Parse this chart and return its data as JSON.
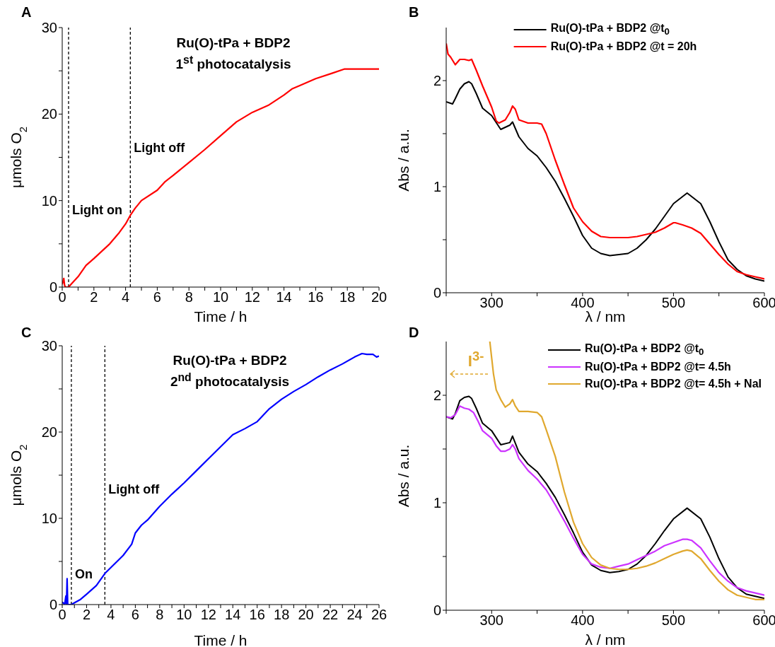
{
  "chart_data": [
    {
      "type": "line",
      "title": "A",
      "xlabel": "Time / h",
      "ylabel": "μmols O$_{2}$",
      "xlim": [
        0,
        20
      ],
      "ylim": [
        0,
        30
      ],
      "xticks": [
        0,
        {
          "value": 1,
          "label": null
        },
        2,
        {
          "value": 3,
          "label": null
        },
        4,
        {
          "value": 5,
          "label": null
        },
        6,
        {
          "value": 7,
          "label": null
        },
        8,
        {
          "value": 9,
          "label": null
        },
        10,
        {
          "value": 11,
          "label": null
        },
        12,
        {
          "value": 13,
          "label": null
        },
        14,
        {
          "value": 15,
          "label": null
        },
        16,
        {
          "value": 17,
          "label": null
        },
        18,
        {
          "value": 19,
          "label": null
        },
        20
      ],
      "yticks": [
        0,
        {
          "value": 5,
          "label": null
        },
        10,
        {
          "value": 15,
          "label": null
        },
        20,
        {
          "value": 25,
          "label": null
        },
        30
      ],
      "annotations": [
        "Ru(O)-tPa + BDP2",
        "1$^{st}$ photocatalysis"
      ],
      "ref_lines": [
        {
          "axis": "x",
          "value": 0.4,
          "label": "Light on",
          "line_style": "dashed",
          "color": "#000000"
        },
        {
          "axis": "x",
          "value": 4.3,
          "label": "Light off",
          "line_style": "dashed",
          "color": "#000000"
        }
      ],
      "series": [
        {
          "color": "#ff0000",
          "x": [
            0,
            0.1,
            0.15,
            0.2,
            0.4,
            0.6,
            1.0,
            1.5,
            2,
            3,
            3.6,
            4,
            4.3,
            4.6,
            5,
            6,
            6.5,
            7,
            8,
            9,
            10,
            11,
            12,
            13,
            14,
            14.5,
            15,
            16,
            17,
            17.8,
            18,
            20
          ],
          "values": [
            0.3,
            1.0,
            0.2,
            0,
            0,
            0.4,
            1.2,
            2.5,
            3.3,
            5.0,
            6.3,
            7.3,
            8.3,
            9.1,
            10.0,
            11.2,
            12.2,
            12.9,
            14.4,
            15.9,
            17.5,
            19.1,
            20.2,
            21.0,
            22.2,
            22.9,
            23.3,
            24.1,
            24.7,
            25.2,
            25.2,
            25.2
          ]
        }
      ]
    },
    {
      "type": "line",
      "title": "B",
      "xlabel": "λ / nm",
      "ylabel": "Abs / a.u.",
      "xlim": [
        250,
        600
      ],
      "ylim": [
        0,
        2.5
      ],
      "xticks": [
        {
          "value": 250,
          "label": null
        },
        300,
        {
          "value": 350,
          "label": null
        },
        400,
        {
          "value": 450,
          "label": null
        },
        500,
        {
          "value": 550,
          "label": null
        },
        600
      ],
      "yticks": [
        0,
        {
          "value": 0.5,
          "label": null
        },
        1,
        {
          "value": 1.5,
          "label": null
        },
        2
      ],
      "legend": "top",
      "series": [
        {
          "name": "Ru(O)-tPa + BDP2 @t$_{0}$",
          "color": "#000000",
          "x": [
            250,
            257,
            260,
            265,
            270,
            275,
            278,
            283,
            290,
            300,
            310,
            320,
            323,
            330,
            340,
            350,
            360,
            370,
            380,
            390,
            400,
            410,
            420,
            430,
            440,
            450,
            460,
            470,
            480,
            490,
            500,
            515,
            530,
            540,
            550,
            560,
            570,
            580,
            590,
            600
          ],
          "values": [
            1.8,
            1.78,
            1.83,
            1.92,
            1.97,
            1.99,
            1.97,
            1.88,
            1.74,
            1.67,
            1.54,
            1.58,
            1.61,
            1.47,
            1.36,
            1.29,
            1.18,
            1.05,
            0.89,
            0.72,
            0.54,
            0.42,
            0.37,
            0.35,
            0.36,
            0.37,
            0.42,
            0.5,
            0.6,
            0.72,
            0.84,
            0.94,
            0.84,
            0.67,
            0.48,
            0.31,
            0.22,
            0.16,
            0.13,
            0.11
          ]
        },
        {
          "name": "Ru(O)-tPa + BDP2 @t = 20h",
          "color": "#ff0000",
          "x": [
            250,
            252,
            255,
            260,
            265,
            270,
            275,
            278,
            283,
            290,
            295,
            300,
            305,
            308,
            315,
            320,
            323,
            326,
            330,
            340,
            350,
            355,
            360,
            370,
            380,
            390,
            400,
            410,
            420,
            430,
            440,
            450,
            460,
            470,
            480,
            490,
            500,
            502,
            510,
            520,
            530,
            540,
            550,
            560,
            570,
            580,
            590,
            600
          ],
          "values": [
            2.35,
            2.25,
            2.22,
            2.15,
            2.2,
            2.2,
            2.19,
            2.2,
            2.1,
            1.95,
            1.85,
            1.75,
            1.62,
            1.6,
            1.63,
            1.7,
            1.76,
            1.73,
            1.63,
            1.6,
            1.6,
            1.59,
            1.5,
            1.25,
            1.02,
            0.8,
            0.67,
            0.58,
            0.53,
            0.52,
            0.52,
            0.52,
            0.53,
            0.55,
            0.57,
            0.61,
            0.66,
            0.66,
            0.64,
            0.61,
            0.56,
            0.46,
            0.36,
            0.27,
            0.2,
            0.17,
            0.15,
            0.13
          ]
        }
      ]
    },
    {
      "type": "line",
      "title": "C",
      "xlabel": "Time / h",
      "ylabel": "μmols O$_{2}$",
      "xlim": [
        0,
        26
      ],
      "ylim": [
        0,
        30
      ],
      "xticks": [
        0,
        {
          "value": 1,
          "label": null
        },
        2,
        {
          "value": 3,
          "label": null
        },
        4,
        {
          "value": 5,
          "label": null
        },
        6,
        {
          "value": 7,
          "label": null
        },
        8,
        {
          "value": 9,
          "label": null
        },
        10,
        {
          "value": 11,
          "label": null
        },
        12,
        {
          "value": 13,
          "label": null
        },
        14,
        {
          "value": 15,
          "label": null
        },
        16,
        {
          "value": 17,
          "label": null
        },
        18,
        {
          "value": 19,
          "label": null
        },
        20,
        {
          "value": 21,
          "label": null
        },
        22,
        {
          "value": 23,
          "label": null
        },
        24,
        {
          "value": 25,
          "label": null
        },
        26
      ],
      "yticks": [
        0,
        {
          "value": 5,
          "label": null
        },
        10,
        {
          "value": 15,
          "label": null
        },
        20,
        {
          "value": 25,
          "label": null
        },
        30
      ],
      "annotations": [
        "Ru(O)-tPa + BDP2",
        "2$^{nd}$ photocatalysis"
      ],
      "ref_lines": [
        {
          "axis": "x",
          "value": 0.75,
          "label": "On",
          "line_style": "dashed",
          "color": "#000000"
        },
        {
          "axis": "x",
          "value": 3.5,
          "label": "Light off",
          "line_style": "dashed",
          "color": "#000000"
        }
      ],
      "series": [
        {
          "color": "#0000ff",
          "x": [
            0,
            0.2,
            0.3,
            0.35,
            0.4,
            0.45,
            0.75,
            1,
            1.5,
            2,
            2.8,
            3.5,
            4,
            5,
            5.7,
            6,
            6.5,
            7,
            8,
            9,
            10,
            11,
            12,
            13,
            14,
            15,
            16,
            17,
            18,
            19,
            20,
            21,
            22,
            23,
            24,
            24.6,
            25,
            25.5,
            25.8,
            26
          ],
          "values": [
            0.3,
            0,
            1.0,
            0,
            3.0,
            0,
            0,
            0.2,
            0.6,
            1.2,
            2.2,
            3.6,
            4.3,
            5.7,
            7.0,
            8.3,
            9.2,
            9.8,
            11.4,
            12.8,
            14.1,
            15.5,
            16.9,
            18.3,
            19.7,
            20.4,
            21.2,
            22.7,
            23.8,
            24.7,
            25.5,
            26.4,
            27.2,
            27.9,
            28.7,
            29.1,
            29.0,
            29.0,
            28.7,
            28.8
          ]
        }
      ]
    },
    {
      "type": "line",
      "title": "D",
      "xlabel": "λ / nm",
      "ylabel": "Abs / a.u.",
      "xlim": [
        250,
        600
      ],
      "ylim": [
        0,
        2.5
      ],
      "xticks": [
        {
          "value": 250,
          "label": null
        },
        300,
        {
          "value": 350,
          "label": null
        },
        400,
        {
          "value": 450,
          "label": null
        },
        500,
        {
          "value": 550,
          "label": null
        },
        600
      ],
      "yticks": [
        0,
        {
          "value": 0.5,
          "label": null
        },
        1,
        {
          "value": 1.5,
          "label": null
        },
        2
      ],
      "legend": "top right",
      "annotations": [
        {
          "text": "I$^{3-}$",
          "x": 302,
          "y": 2.2
        }
      ],
      "series": [
        {
          "name": "Ru(O)-tPa + BDP2 @t$_{0}$",
          "color": "#000000",
          "x": [
            250,
            257,
            260,
            265,
            270,
            275,
            278,
            283,
            290,
            300,
            310,
            320,
            323,
            330,
            340,
            350,
            360,
            370,
            380,
            390,
            400,
            410,
            420,
            430,
            440,
            450,
            460,
            470,
            480,
            490,
            500,
            515,
            530,
            540,
            550,
            560,
            570,
            580,
            590,
            600
          ],
          "values": [
            1.8,
            1.78,
            1.83,
            1.95,
            1.98,
            1.99,
            1.97,
            1.88,
            1.74,
            1.67,
            1.54,
            1.56,
            1.62,
            1.47,
            1.36,
            1.29,
            1.18,
            1.05,
            0.89,
            0.72,
            0.54,
            0.42,
            0.37,
            0.35,
            0.36,
            0.38,
            0.43,
            0.51,
            0.62,
            0.74,
            0.85,
            0.95,
            0.85,
            0.68,
            0.48,
            0.31,
            0.21,
            0.15,
            0.13,
            0.11
          ]
        },
        {
          "name": "Ru(O)-tPa + BDP2 @t= 4.5h",
          "color": "#cc33ff",
          "x": [
            250,
            255,
            260,
            265,
            270,
            275,
            280,
            285,
            290,
            300,
            305,
            310,
            315,
            320,
            323,
            326,
            330,
            340,
            350,
            360,
            370,
            380,
            390,
            400,
            410,
            420,
            430,
            440,
            450,
            460,
            470,
            480,
            490,
            500,
            510,
            515,
            520,
            530,
            540,
            550,
            560,
            570,
            580,
            590,
            600
          ],
          "values": [
            1.8,
            1.79,
            1.82,
            1.9,
            1.88,
            1.87,
            1.84,
            1.76,
            1.67,
            1.6,
            1.53,
            1.48,
            1.48,
            1.5,
            1.54,
            1.5,
            1.41,
            1.3,
            1.22,
            1.12,
            0.98,
            0.83,
            0.67,
            0.52,
            0.43,
            0.4,
            0.39,
            0.41,
            0.43,
            0.47,
            0.51,
            0.55,
            0.6,
            0.63,
            0.66,
            0.66,
            0.65,
            0.58,
            0.46,
            0.35,
            0.27,
            0.21,
            0.18,
            0.16,
            0.14
          ]
        },
        {
          "name": "Ru(O)-tPa + BDP2 @t= 4.5h + NaI",
          "color": "#e0a82e",
          "x": [
            298,
            300,
            302,
            305,
            310,
            315,
            320,
            323,
            326,
            330,
            340,
            350,
            355,
            360,
            370,
            380,
            390,
            400,
            410,
            420,
            430,
            440,
            450,
            460,
            470,
            480,
            490,
            500,
            510,
            515,
            520,
            530,
            540,
            550,
            560,
            570,
            580,
            590,
            600
          ],
          "values": [
            2.5,
            2.35,
            2.2,
            2.05,
            1.96,
            1.89,
            1.92,
            1.96,
            1.9,
            1.85,
            1.85,
            1.84,
            1.8,
            1.68,
            1.43,
            1.1,
            0.82,
            0.62,
            0.49,
            0.42,
            0.39,
            0.38,
            0.38,
            0.39,
            0.41,
            0.44,
            0.48,
            0.52,
            0.55,
            0.56,
            0.55,
            0.48,
            0.37,
            0.27,
            0.19,
            0.14,
            0.12,
            0.1,
            0.1
          ]
        }
      ]
    }
  ]
}
